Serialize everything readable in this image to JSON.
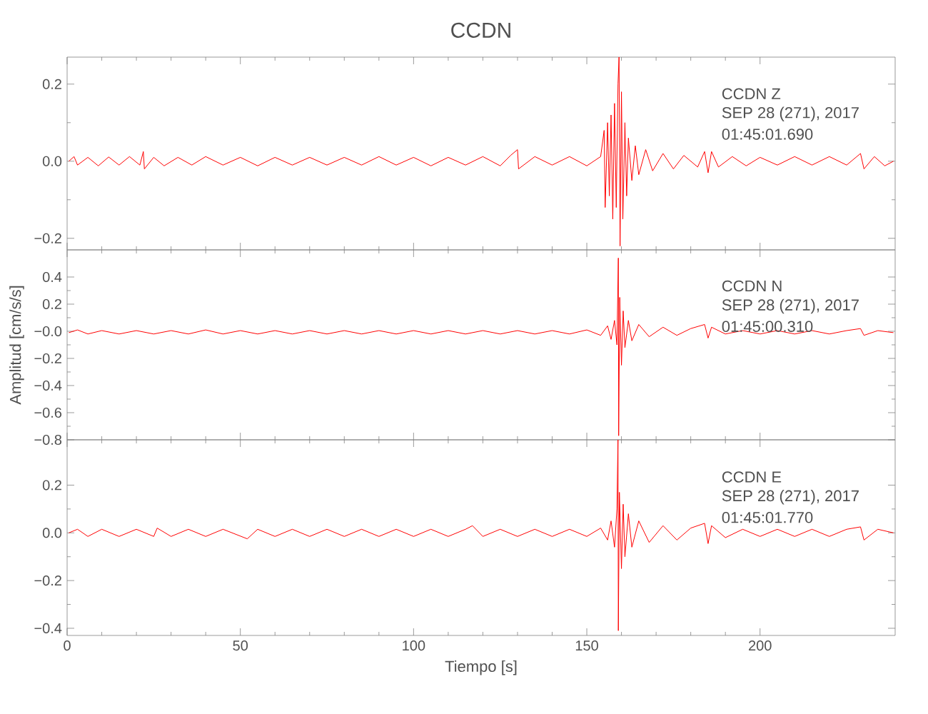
{
  "chart_data": [
    {
      "type": "line",
      "title": "CCDN",
      "color": "#ff0000",
      "tick_labels": "y",
      "annotations": [
        "CCDN   Z",
        "SEP 28 (271), 2017",
        "01:45:01.690"
      ],
      "xlim": [
        0,
        239
      ],
      "xticks": [
        0,
        50,
        100,
        150,
        200
      ],
      "ylim": [
        -0.23,
        0.27
      ],
      "yticks": [
        {
          "value": 0.2,
          "label": "0.2"
        },
        {
          "value": 0,
          "label": "0.0"
        },
        {
          "value": -0.2,
          "label": "−0.2"
        }
      ],
      "x": [
        0.5,
        2,
        3,
        6,
        9,
        12,
        15,
        18,
        21,
        22,
        22.3,
        25,
        28,
        32,
        36,
        40,
        45,
        50,
        55,
        60,
        65,
        70,
        75,
        80,
        85,
        90,
        95,
        100,
        105,
        110,
        115,
        120,
        125,
        128,
        130,
        130.3,
        135,
        140,
        145,
        150,
        154,
        155,
        155.3,
        156,
        156.5,
        157,
        157.5,
        158,
        158.5,
        159,
        159.3,
        159.6,
        160,
        160.4,
        161,
        161.5,
        162,
        163,
        164,
        165,
        167,
        169,
        172,
        175,
        178,
        182,
        184,
        185,
        186,
        188,
        192,
        196,
        200,
        205,
        210,
        215,
        220,
        225,
        229,
        230,
        233,
        236,
        238.5
      ],
      "values": [
        0,
        0.012,
        -0.01,
        0.01,
        -0.012,
        0.011,
        -0.01,
        0.012,
        -0.01,
        0.025,
        -0.02,
        0.01,
        -0.012,
        0.01,
        -0.01,
        0.012,
        -0.01,
        0.01,
        -0.012,
        0.01,
        -0.01,
        0.01,
        -0.01,
        0.01,
        -0.01,
        0.012,
        -0.01,
        0.01,
        -0.012,
        0.01,
        -0.01,
        0.012,
        -0.012,
        0.015,
        0.03,
        -0.02,
        0.012,
        -0.01,
        0.012,
        -0.012,
        0.012,
        0.08,
        -0.12,
        0.1,
        -0.09,
        0.12,
        -0.15,
        0.15,
        -0.12,
        0.2,
        0.27,
        -0.22,
        0.18,
        -0.15,
        0.1,
        -0.09,
        0.06,
        -0.05,
        0.04,
        -0.035,
        0.03,
        -0.025,
        0.02,
        -0.02,
        0.015,
        -0.015,
        0.025,
        -0.03,
        0.025,
        -0.015,
        0.012,
        -0.012,
        0.01,
        -0.01,
        0.012,
        -0.01,
        0.012,
        -0.01,
        0.02,
        -0.02,
        0.012,
        -0.012,
        0
      ]
    },
    {
      "type": "line",
      "ylabel": "Amplitud [cm/s/s]",
      "color": "#ff0000",
      "tick_labels": "y",
      "annotations": [
        "CCDN   N",
        "SEP 28 (271), 2017",
        "01:45:00.310"
      ],
      "xlim": [
        0,
        239
      ],
      "xticks": [
        0,
        50,
        100,
        150,
        200
      ],
      "ylim": [
        -0.8,
        0.6
      ],
      "yticks": [
        {
          "value": 0.4,
          "label": "0.4"
        },
        {
          "value": 0.2,
          "label": "0.2"
        },
        {
          "value": 0,
          "label": "−0.0"
        },
        {
          "value": -0.2,
          "label": "−0.2"
        },
        {
          "value": -0.4,
          "label": "−0.4"
        },
        {
          "value": -0.6,
          "label": "−0.6"
        },
        {
          "value": -0.8,
          "label": "−0.8"
        }
      ],
      "x": [
        0.5,
        3,
        6,
        10,
        15,
        20,
        25,
        30,
        35,
        40,
        45,
        50,
        55,
        60,
        65,
        70,
        75,
        80,
        85,
        90,
        95,
        100,
        105,
        110,
        115,
        120,
        125,
        130,
        135,
        140,
        145,
        150,
        154,
        156,
        157,
        158,
        158.7,
        159.1,
        159.2,
        159.5,
        160,
        160.5,
        161,
        162,
        163,
        165,
        168,
        172,
        176,
        180,
        184,
        185,
        186,
        190,
        195,
        200,
        205,
        210,
        215,
        220,
        225,
        229,
        230,
        234,
        238.5
      ],
      "values": [
        -0.01,
        0.01,
        -0.02,
        0.005,
        -0.02,
        0.005,
        -0.02,
        0.005,
        -0.02,
        0.01,
        -0.02,
        0.005,
        -0.02,
        0.005,
        -0.02,
        0.005,
        -0.02,
        0.005,
        -0.02,
        0.005,
        -0.02,
        0.005,
        -0.02,
        0.005,
        -0.02,
        0.005,
        -0.02,
        0.005,
        -0.02,
        0.005,
        -0.02,
        0.01,
        -0.03,
        0.04,
        -0.06,
        0.08,
        -0.1,
        0.54,
        -0.77,
        0.25,
        -0.25,
        0.15,
        -0.12,
        0.08,
        -0.07,
        0.05,
        -0.04,
        0.03,
        -0.03,
        0.02,
        0.05,
        -0.05,
        0.03,
        -0.02,
        0.005,
        -0.02,
        0.005,
        -0.02,
        0.005,
        -0.02,
        0.005,
        0.02,
        -0.03,
        0.005,
        -0.01
      ]
    },
    {
      "type": "line",
      "xlabel": "Tiempo [s]",
      "color": "#ff0000",
      "annotations": [
        "CCDN   E",
        "SEP 28 (271), 2017",
        "01:45:01.770"
      ],
      "xlim": [
        0,
        239
      ],
      "xticks": [
        0,
        50,
        100,
        150,
        200
      ],
      "ylim": [
        -0.43,
        0.39
      ],
      "yticks": [
        {
          "value": 0.2,
          "label": "0.2"
        },
        {
          "value": 0,
          "label": "0.0"
        },
        {
          "value": -0.2,
          "label": "−0.2"
        },
        {
          "value": -0.4,
          "label": "−0.4"
        }
      ],
      "x": [
        0.5,
        3,
        6,
        10,
        15,
        20,
        25,
        26,
        30,
        35,
        40,
        45,
        52,
        55,
        60,
        65,
        70,
        75,
        80,
        85,
        90,
        95,
        100,
        105,
        110,
        115,
        117,
        120,
        125,
        130,
        135,
        140,
        145,
        150,
        154,
        156,
        157,
        158,
        158.7,
        159,
        159.1,
        159.4,
        160,
        160.5,
        161,
        162,
        163,
        165,
        168,
        172,
        176,
        180,
        184,
        185,
        186,
        190,
        195,
        200,
        205,
        210,
        215,
        220,
        225,
        229,
        230,
        234,
        238.5
      ],
      "values": [
        0,
        0.015,
        -0.015,
        0.015,
        -0.015,
        0.015,
        -0.015,
        0.02,
        -0.015,
        0.015,
        -0.015,
        0.015,
        -0.025,
        0.015,
        -0.015,
        0.015,
        -0.015,
        0.015,
        -0.015,
        0.015,
        -0.015,
        0.015,
        -0.015,
        0.015,
        -0.015,
        0.015,
        0.03,
        -0.015,
        0.015,
        -0.015,
        0.015,
        -0.015,
        0.015,
        -0.015,
        0.02,
        -0.03,
        0.05,
        -0.06,
        0.1,
        0.39,
        -0.41,
        0.17,
        -0.15,
        0.12,
        -0.1,
        0.08,
        -0.06,
        0.05,
        -0.04,
        0.03,
        -0.03,
        0.02,
        0.04,
        -0.045,
        0.03,
        -0.02,
        0.015,
        -0.015,
        0.015,
        -0.015,
        0.015,
        -0.015,
        0.015,
        0.025,
        -0.03,
        0.015,
        0
      ]
    }
  ]
}
